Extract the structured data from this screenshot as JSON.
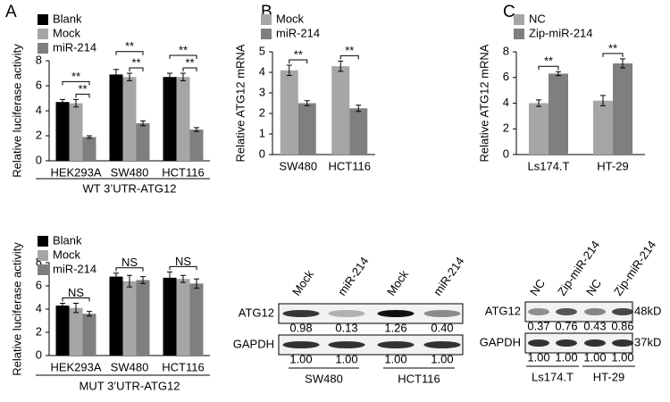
{
  "panels": [
    "A",
    "B",
    "C"
  ],
  "chart_data": [
    {
      "type": "bar",
      "ylabel": "Relative luciferase activity",
      "xlabel": "WT 3’UTR-ATG12",
      "categories": [
        "HEK293A",
        "SW480",
        "HCT116"
      ],
      "series": [
        {
          "name": "Blank",
          "color": "#000000",
          "values": [
            4.7,
            6.9,
            6.7
          ],
          "errors": [
            0.2,
            0.4,
            0.3
          ]
        },
        {
          "name": "Mock",
          "color": "#a6a6a6",
          "values": [
            4.6,
            6.7,
            6.7
          ],
          "errors": [
            0.3,
            0.3,
            0.3
          ]
        },
        {
          "name": "miR-214",
          "color": "#7f7f7f",
          "values": [
            1.9,
            3.0,
            2.5
          ],
          "errors": [
            0.1,
            0.2,
            0.15
          ]
        }
      ],
      "ylim": [
        0,
        8
      ],
      "yticks": [
        0,
        2,
        4,
        6,
        8
      ],
      "annotations": [
        "**",
        "**",
        "**",
        "**",
        "**",
        "**"
      ]
    },
    {
      "type": "bar",
      "ylabel": "Relative luciferase activity",
      "xlabel": "MUT 3’UTR-ATG12",
      "categories": [
        "HEK293A",
        "SW480",
        "HCT116"
      ],
      "series": [
        {
          "name": "Blank",
          "color": "#000000",
          "values": [
            4.3,
            6.8,
            6.7
          ],
          "errors": [
            0.2,
            0.3,
            0.5
          ]
        },
        {
          "name": "Mock",
          "color": "#a6a6a6",
          "values": [
            4.1,
            6.4,
            6.6
          ],
          "errors": [
            0.4,
            0.5,
            0.3
          ]
        },
        {
          "name": "miR-214",
          "color": "#7f7f7f",
          "values": [
            3.6,
            6.5,
            6.2
          ],
          "errors": [
            0.2,
            0.3,
            0.4
          ]
        }
      ],
      "ylim": [
        0,
        8
      ],
      "yticks": [
        0,
        2,
        4,
        6,
        8
      ],
      "annotations": [
        "NS",
        "NS",
        "NS"
      ]
    },
    {
      "type": "bar",
      "ylabel": "Relative ATG12 mRNA",
      "categories": [
        "SW480",
        "HCT116"
      ],
      "series": [
        {
          "name": "Mock",
          "color": "#a6a6a6",
          "values": [
            4.1,
            4.3
          ],
          "errors": [
            0.25,
            0.25
          ]
        },
        {
          "name": "miR-214",
          "color": "#7f7f7f",
          "values": [
            2.5,
            2.25
          ],
          "errors": [
            0.12,
            0.15
          ]
        }
      ],
      "ylim": [
        0,
        5
      ],
      "yticks": [
        0,
        1,
        2,
        3,
        4,
        5
      ],
      "annotations": [
        "**",
        "**"
      ]
    },
    {
      "type": "bar",
      "ylabel": "Relative ATG12 mRNA",
      "categories": [
        "Ls174.T",
        "HT-29"
      ],
      "series": [
        {
          "name": "NC",
          "color": "#a6a6a6",
          "values": [
            4.0,
            4.2
          ],
          "errors": [
            0.25,
            0.4
          ]
        },
        {
          "name": "Zip-miR-214",
          "color": "#7f7f7f",
          "values": [
            6.3,
            7.1
          ],
          "errors": [
            0.15,
            0.35
          ]
        }
      ],
      "ylim": [
        0,
        8
      ],
      "yticks": [
        0,
        2,
        4,
        6,
        8
      ],
      "annotations": [
        "**",
        "**"
      ]
    }
  ],
  "blots": [
    {
      "lanes": [
        "Mock",
        "miR-214",
        "Mock",
        "miR-214"
      ],
      "groups": [
        "SW480",
        "HCT116"
      ],
      "rows": [
        {
          "label": "ATG12",
          "quant": [
            "0.98",
            "0.13",
            "1.26",
            "0.40"
          ]
        },
        {
          "label": "GAPDH",
          "quant": [
            "1.00",
            "1.00",
            "1.00",
            "1.00"
          ]
        }
      ]
    },
    {
      "lanes": [
        "NC",
        "Zip-miR-214",
        "NC",
        "Zip-miR-214"
      ],
      "groups": [
        "Ls174.T",
        "HT-29"
      ],
      "rows": [
        {
          "label": "ATG12",
          "size": "48kD",
          "quant": [
            "0.37",
            "0.76",
            "0.43",
            "0.86"
          ]
        },
        {
          "label": "GAPDH",
          "size": "37kD",
          "quant": [
            "1.00",
            "1.00",
            "1.00",
            "1.00"
          ]
        }
      ]
    }
  ]
}
